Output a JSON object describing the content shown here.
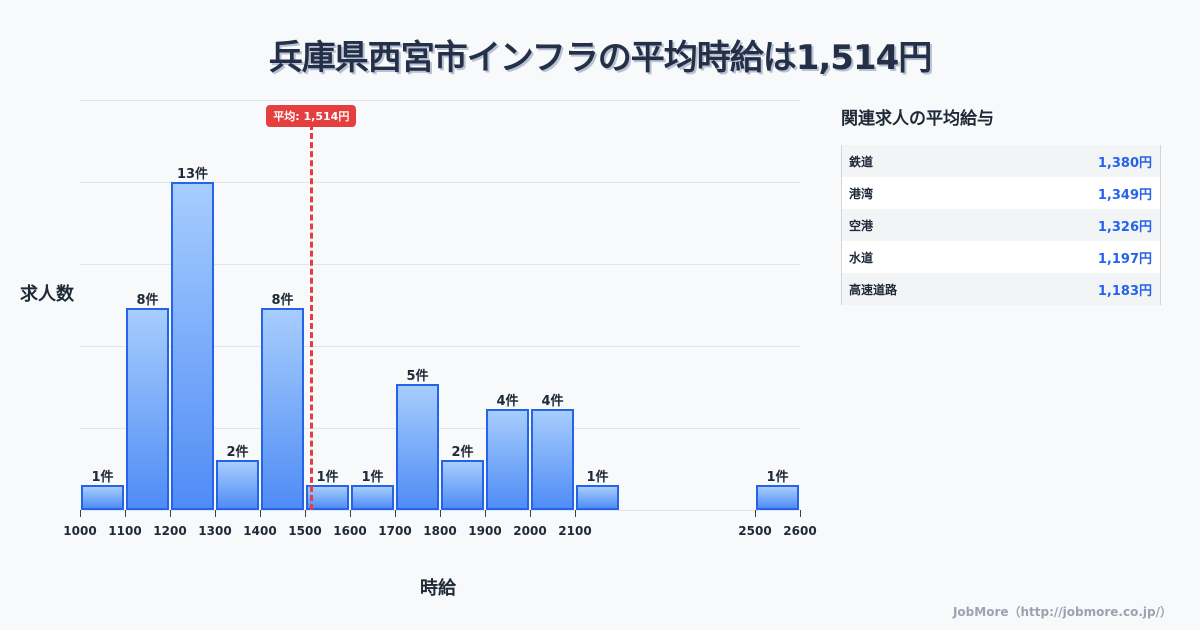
{
  "title": "兵庫県西宮市インフラの平均時給は1,514円",
  "chart_data": {
    "type": "bar",
    "title": "兵庫県西宮市インフラの平均時給は1,514円",
    "xlabel": "時給",
    "ylabel": "求人数",
    "bins": [
      {
        "from": 1000,
        "to": 1100,
        "count": 1,
        "label": "1件"
      },
      {
        "from": 1100,
        "to": 1200,
        "count": 8,
        "label": "8件"
      },
      {
        "from": 1200,
        "to": 1300,
        "count": 13,
        "label": "13件"
      },
      {
        "from": 1300,
        "to": 1400,
        "count": 2,
        "label": "2件"
      },
      {
        "from": 1400,
        "to": 1500,
        "count": 8,
        "label": "8件"
      },
      {
        "from": 1500,
        "to": 1600,
        "count": 1,
        "label": "1件"
      },
      {
        "from": 1600,
        "to": 1700,
        "count": 1,
        "label": "1件"
      },
      {
        "from": 1700,
        "to": 1800,
        "count": 5,
        "label": "5件"
      },
      {
        "from": 1800,
        "to": 1900,
        "count": 2,
        "label": "2件"
      },
      {
        "from": 1900,
        "to": 2000,
        "count": 4,
        "label": "4件"
      },
      {
        "from": 2000,
        "to": 2100,
        "count": 4,
        "label": "4件"
      },
      {
        "from": 2100,
        "to": 2200,
        "count": 1,
        "label": "1件"
      },
      {
        "from": 2500,
        "to": 2600,
        "count": 1,
        "label": "1件"
      }
    ],
    "categories": [
      "1000-1100",
      "1100-1200",
      "1200-1300",
      "1300-1400",
      "1400-1500",
      "1500-1600",
      "1600-1700",
      "1700-1800",
      "1800-1900",
      "1900-2000",
      "2000-2100",
      "2100-2200",
      "2500-2600"
    ],
    "values": [
      1,
      8,
      13,
      2,
      8,
      1,
      1,
      5,
      2,
      4,
      4,
      1,
      1
    ],
    "x_ticks": [
      "1000",
      "1100",
      "1200",
      "1300",
      "1400",
      "1500",
      "1600",
      "1700",
      "1800",
      "1900",
      "2000",
      "2100",
      "2500",
      "2600"
    ],
    "xlim": [
      1000,
      2600
    ],
    "ylim": [
      0,
      16.25
    ],
    "grid": true,
    "mean_line": {
      "value": 1514,
      "label": "平均: 1,514円",
      "color": "#e53e3e"
    },
    "bar_color": "#4f8cf5",
    "bar_border_color": "#2563eb"
  },
  "sidebar": {
    "title": "関連求人の平均給与",
    "rows": [
      {
        "name": "鉄道",
        "value": "1,380円"
      },
      {
        "name": "港湾",
        "value": "1,349円"
      },
      {
        "name": "空港",
        "value": "1,326円"
      },
      {
        "name": "水道",
        "value": "1,197円"
      },
      {
        "name": "高速道路",
        "value": "1,183円"
      }
    ]
  },
  "footer": "JobMore（http://jobmore.co.jp/）"
}
